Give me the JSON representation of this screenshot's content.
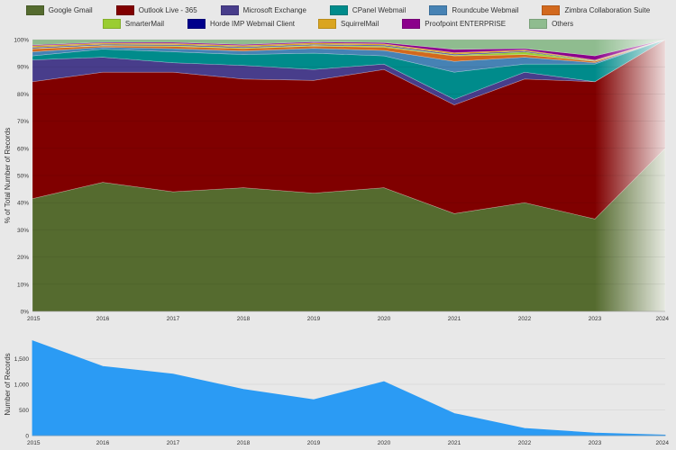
{
  "chart_data": [
    {
      "type": "area",
      "stacked": true,
      "normalized": true,
      "x": [
        "2015",
        "2016",
        "2017",
        "2018",
        "2019",
        "2020",
        "2021",
        "2022",
        "2023",
        "2024"
      ],
      "ylabel": "% of Total Number of Records",
      "ylim": [
        0,
        100
      ],
      "yticks": [
        "0%",
        "10%",
        "20%",
        "30%",
        "40%",
        "50%",
        "60%",
        "70%",
        "80%",
        "90%",
        "100%"
      ],
      "grid": true,
      "legend_position": "top",
      "series": [
        {
          "name": "Google Gmail",
          "color": "#556b2f",
          "values": [
            41.5,
            47.5,
            44,
            45.5,
            43.5,
            45.5,
            36,
            40,
            34,
            60
          ]
        },
        {
          "name": "Outlook Live - 365",
          "color": "#800000",
          "values": [
            43,
            40.5,
            44,
            40,
            41.5,
            43.5,
            40,
            45.5,
            50.5,
            40
          ]
        },
        {
          "name": "Microsoft Exchange",
          "color": "#483d8b",
          "values": [
            8,
            5.5,
            3.5,
            5,
            4,
            2,
            2,
            2.5,
            0,
            0
          ]
        },
        {
          "name": "CPanel Webmail",
          "color": "#008b8b",
          "values": [
            1.5,
            3,
            4,
            4,
            6,
            3,
            10,
            3,
            6.5,
            0
          ]
        },
        {
          "name": "Roundcube Webmail",
          "color": "#4682b4",
          "values": [
            1.5,
            0.7,
            1.2,
            1.3,
            1.8,
            2.0,
            4.0,
            2.5,
            0.5,
            0
          ]
        },
        {
          "name": "Zimbra Collaboration Suite",
          "color": "#d2691e",
          "values": [
            1.1,
            0.5,
            0.8,
            0.9,
            0.8,
            1.2,
            2.0,
            1.0,
            0.5,
            0
          ]
        },
        {
          "name": "SmarterMail",
          "color": "#9acd32",
          "values": [
            0.2,
            0.2,
            0.3,
            0.3,
            0.3,
            0.4,
            0.3,
            1.0,
            0.1,
            0
          ]
        },
        {
          "name": "Horde IMP Webmail Client",
          "color": "#00008b",
          "values": [
            0.3,
            0.3,
            0.3,
            0.3,
            0.3,
            0.3,
            0.3,
            0.3,
            0.1,
            0
          ]
        },
        {
          "name": "SquirrelMail",
          "color": "#daa520",
          "values": [
            0.6,
            0.5,
            0.5,
            0.5,
            0.6,
            0.5,
            0.6,
            0.4,
            0.3,
            0
          ]
        },
        {
          "name": "Proofpoint ENTERPRISE",
          "color": "#8b008b",
          "values": [
            0.3,
            0.3,
            0.4,
            0.4,
            0.4,
            0.5,
            1.2,
            0.5,
            1.5,
            0
          ]
        },
        {
          "name": "Others",
          "color": "#8fbc8f",
          "values": [
            2.0,
            1.0,
            1.0,
            1.8,
            0.8,
            1.1,
            3.6,
            3.3,
            6.0,
            0
          ]
        }
      ]
    },
    {
      "type": "area",
      "x": [
        "2015",
        "2016",
        "2017",
        "2018",
        "2019",
        "2020",
        "2021",
        "2022",
        "2023",
        "2024"
      ],
      "ylabel": "Number of Records",
      "ylim": [
        0,
        2000
      ],
      "yticks": [
        "0",
        "500",
        "1,000",
        "1,500"
      ],
      "grid": true,
      "color": "#2b9bf4",
      "series": [
        {
          "values": [
            1850,
            1350,
            1200,
            900,
            700,
            1050,
            430,
            140,
            50,
            10
          ]
        }
      ]
    }
  ]
}
